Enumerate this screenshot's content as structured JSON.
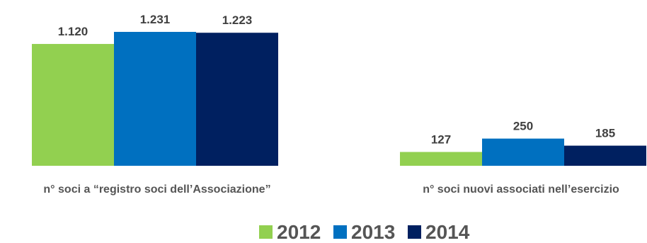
{
  "chart_data": {
    "type": "bar",
    "categories": [
      "n° soci a “registro soci dell’Associazione”",
      "n° soci nuovi associati nell’esercizio"
    ],
    "series": [
      {
        "name": "2012",
        "color": "#92d050",
        "values": [
          1120,
          127
        ],
        "labels": [
          "1.120",
          "127"
        ]
      },
      {
        "name": "2013",
        "color": "#0070c0",
        "values": [
          1231,
          250
        ],
        "labels": [
          "1.231",
          "250"
        ]
      },
      {
        "name": "2014",
        "color": "#002060",
        "values": [
          1223,
          185
        ],
        "labels": [
          "1.223",
          "185"
        ]
      }
    ],
    "legend_position": "bottom",
    "grid": false
  }
}
